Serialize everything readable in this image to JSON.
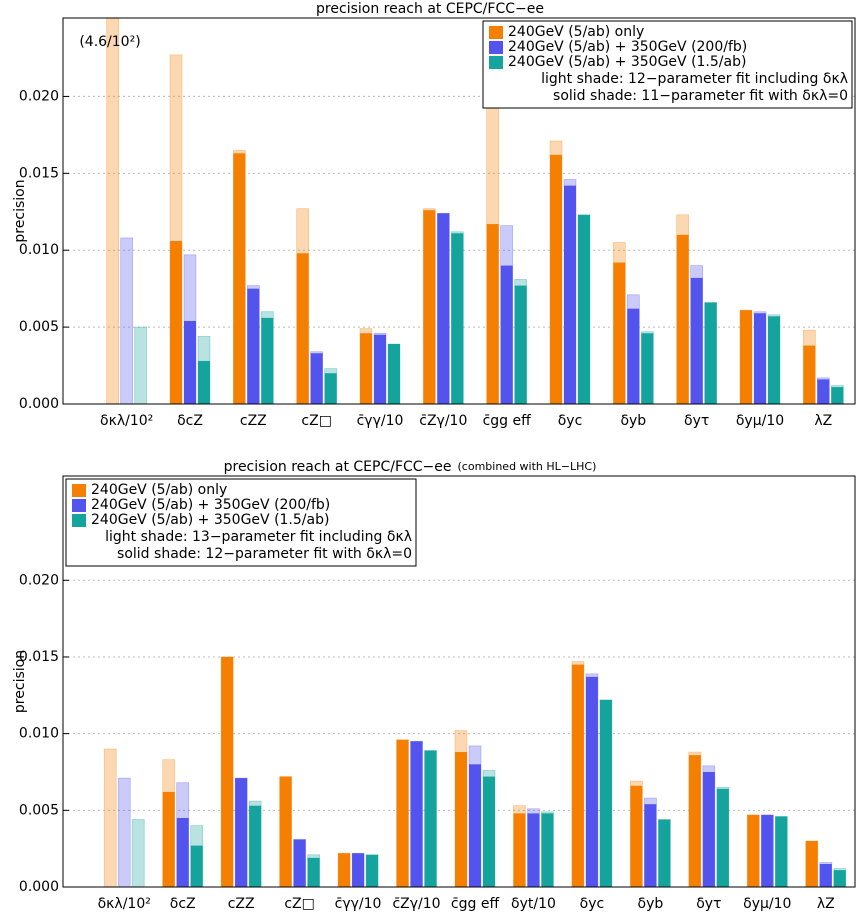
{
  "chart_data": [
    {
      "type": "bar",
      "title": "precision reach at CEPC/FCC−ee",
      "ylabel": "precision",
      "categories": [
        "δκλ/10²",
        "δcZ",
        "cZZ",
        "cZ□",
        "c̄γγ/10",
        "c̄Zγ/10",
        "c̄gg eff",
        "δyc",
        "δyb",
        "δyτ",
        "δyμ/10",
        "λZ"
      ],
      "series": [
        {
          "name": "240GeV (5/ab) only",
          "color": "#f57f00",
          "values": [
            null,
            0.0106,
            0.0163,
            0.0098,
            0.0046,
            0.0126,
            0.0117,
            0.0162,
            0.0092,
            0.011,
            0.0061,
            0.0038
          ],
          "light_values": [
            0.046,
            0.0227,
            0.0165,
            0.0127,
            0.0049,
            0.0127,
            0.0238,
            0.0171,
            0.0105,
            0.0123,
            0.0061,
            0.0048
          ]
        },
        {
          "name": "240GeV (5/ab) + 350GeV (200/fb)",
          "color": "#5353ee",
          "values": [
            null,
            0.0054,
            0.0075,
            0.0033,
            0.0045,
            0.0124,
            0.009,
            0.0142,
            0.0062,
            0.0082,
            0.0059,
            0.0016
          ],
          "light_values": [
            0.0108,
            0.0097,
            0.0077,
            0.0034,
            0.0046,
            0.0124,
            0.0116,
            0.0146,
            0.0071,
            0.009,
            0.006,
            0.0017
          ]
        },
        {
          "name": "240GeV (5/ab) + 350GeV (1.5/ab)",
          "color": "#14a39d",
          "values": [
            null,
            0.0028,
            0.0056,
            0.002,
            0.0039,
            0.0111,
            0.0077,
            0.0123,
            0.0046,
            0.0066,
            0.0057,
            0.0011
          ],
          "light_values": [
            0.005,
            0.0044,
            0.006,
            0.0023,
            0.0039,
            0.0112,
            0.0081,
            0.0123,
            0.0047,
            0.0066,
            0.0058,
            0.0012
          ]
        }
      ],
      "annotation": "(4.6/10²)",
      "legend": "upper right",
      "legend_notes": [
        "light shade: 12−parameter fit including δκλ",
        "solid shade: 11−parameter fit with δκλ=0"
      ],
      "ylim": [
        0,
        0.0251
      ],
      "yticks": [
        {
          "value": 0,
          "label": "0.000"
        },
        {
          "value": 0.005,
          "label": "0.005"
        },
        {
          "value": 0.01,
          "label": "0.010"
        },
        {
          "value": 0.015,
          "label": "0.015"
        },
        {
          "value": 0.02,
          "label": "0.020"
        }
      ],
      "grid": true
    },
    {
      "type": "bar",
      "title": "precision reach at CEPC/FCC−ee",
      "subtitle": "(combined with HL−LHC)",
      "ylabel": "precision",
      "categories": [
        "δκλ/10²",
        "δcZ",
        "cZZ",
        "cZ□",
        "c̄γγ/10",
        "c̄Zγ/10",
        "c̄gg eff",
        "δyt/10",
        "δyc",
        "δyb",
        "δyτ",
        "δyμ/10",
        "λZ"
      ],
      "series": [
        {
          "name": "240GeV (5/ab) only",
          "color": "#f57f00",
          "values": [
            null,
            0.0062,
            0.015,
            0.0072,
            0.0022,
            0.0096,
            0.0088,
            0.0048,
            0.0145,
            0.0066,
            0.0086,
            0.0047,
            0.003
          ],
          "light_values": [
            0.009,
            0.0083,
            0.015,
            0.0072,
            0.0022,
            0.0096,
            0.0102,
            0.0053,
            0.0147,
            0.0069,
            0.0088,
            0.0047,
            0.003
          ]
        },
        {
          "name": "240GeV (5/ab) + 350GeV (200/fb)",
          "color": "#5353ee",
          "values": [
            null,
            0.0045,
            0.0071,
            0.0031,
            0.0022,
            0.0095,
            0.008,
            0.0048,
            0.0137,
            0.0054,
            0.0075,
            0.0047,
            0.0015
          ],
          "light_values": [
            0.0071,
            0.0068,
            0.0071,
            0.0031,
            0.0022,
            0.0095,
            0.0092,
            0.0051,
            0.0139,
            0.0058,
            0.0079,
            0.0047,
            0.0016
          ]
        },
        {
          "name": "240GeV (5/ab) + 350GeV (1.5/ab)",
          "color": "#14a39d",
          "values": [
            null,
            0.0027,
            0.0053,
            0.0019,
            0.0021,
            0.0089,
            0.0072,
            0.0048,
            0.0122,
            0.0044,
            0.0064,
            0.0046,
            0.0011
          ],
          "light_values": [
            0.0044,
            0.004,
            0.0056,
            0.0021,
            0.0021,
            0.0089,
            0.0076,
            0.0049,
            0.0122,
            0.0044,
            0.0065,
            0.0046,
            0.0012
          ]
        }
      ],
      "legend": "upper left",
      "legend_notes": [
        "light shade: 13−parameter fit including δκλ",
        "solid shade: 12−parameter fit with δκλ=0"
      ],
      "ylim": [
        0,
        0.0268
      ],
      "yticks": [
        {
          "value": 0,
          "label": "0.000"
        },
        {
          "value": 0.005,
          "label": "0.005"
        },
        {
          "value": 0.01,
          "label": "0.010"
        },
        {
          "value": 0.015,
          "label": "0.015"
        },
        {
          "value": 0.02,
          "label": "0.020"
        }
      ],
      "grid": true
    }
  ]
}
